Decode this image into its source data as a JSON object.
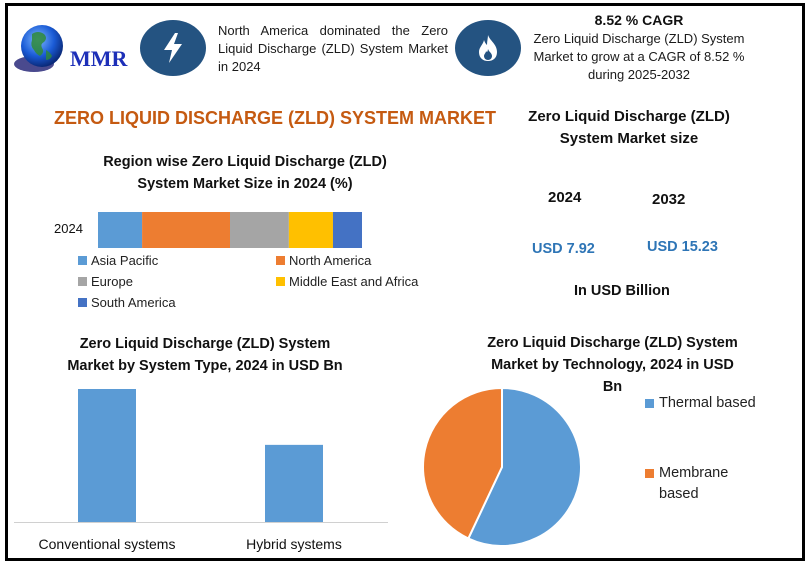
{
  "header": {
    "logo_text": "MMR",
    "region_icon": "lightning-bolt-icon",
    "region_text": "North America dominated the Zero Liquid Discharge (ZLD) System Market in 2024",
    "cagr_icon": "flame-icon",
    "cagr_title": "8.52 % CAGR",
    "cagr_text": "Zero Liquid Discharge (ZLD) System Market to grow at a CAGR of 8.52 % during 2025-2032"
  },
  "main_title": "ZERO LIQUID DISCHARGE (ZLD) SYSTEM MARKET",
  "market_size": {
    "title_line1": "Zero Liquid Discharge (ZLD)",
    "title_line2": "System Market size",
    "year1": "2024",
    "year2": "2032",
    "value1": "USD 7.92",
    "value2": "USD 15.23",
    "unit": "In USD Billion"
  },
  "colors": {
    "blue": "#5b9bd5",
    "orange": "#ed7d31",
    "gray": "#a5a5a5",
    "yellow": "#ffc000",
    "dark_blue": "#4472c4",
    "icon_navy": "#245381",
    "title_orange": "#c55a11",
    "value_blue": "#2e75b6"
  },
  "chart_data": [
    {
      "type": "bar",
      "subtype": "stacked-horizontal",
      "title_line1": "Region wise Zero Liquid Discharge (ZLD)",
      "title_line2": "System Market Size in 2024 (%)",
      "categories": [
        "2024"
      ],
      "series": [
        {
          "name": "Asia Pacific",
          "values": [
            16.7
          ],
          "color": "#5b9bd5"
        },
        {
          "name": "North America",
          "values": [
            33.3
          ],
          "color": "#ed7d31"
        },
        {
          "name": "Europe",
          "values": [
            22.3
          ],
          "color": "#a5a5a5"
        },
        {
          "name": "Middle East and Africa",
          "values": [
            16.7
          ],
          "color": "#ffc000"
        },
        {
          "name": "South America",
          "values": [
            11.0
          ],
          "color": "#4472c4"
        }
      ],
      "xlim": [
        0,
        100
      ],
      "legend": "bottom",
      "grid": false
    },
    {
      "type": "bar",
      "title_line1": "Zero Liquid Discharge (ZLD) System",
      "title_line2": "Market by System Type, 2024 in USD Bn",
      "categories": [
        "Conventional systems",
        "Hybrid systems"
      ],
      "values": [
        5.0,
        2.9
      ],
      "color": "#5b9bd5",
      "ylim": [
        0,
        5.0
      ],
      "xlabel": "",
      "ylabel": "",
      "grid": false
    },
    {
      "type": "pie",
      "title_line1": "Zero Liquid Discharge (ZLD) System",
      "title_line2": "Market by Technology, 2024 in USD",
      "title_line3": "Bn",
      "labels": [
        "Thermal based",
        "Membrane based"
      ],
      "legend_lines": [
        [
          "Thermal based"
        ],
        [
          "Membrane",
          "based"
        ]
      ],
      "values": [
        57,
        43
      ],
      "colors": [
        "#5b9bd5",
        "#ed7d31"
      ],
      "legend": "right"
    }
  ]
}
